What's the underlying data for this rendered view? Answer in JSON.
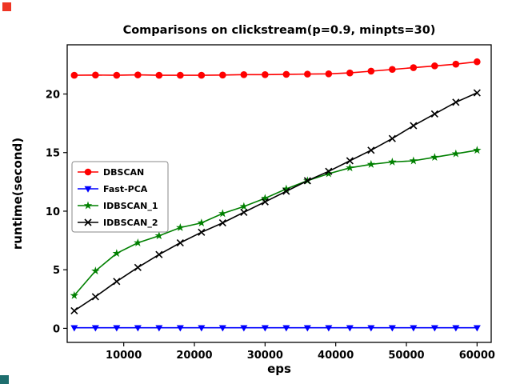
{
  "overlay_markers": {
    "top_left_color": "#ee3524",
    "bottom_left_color": "#1e6e6e"
  },
  "chart_data": {
    "type": "line",
    "title": "Comparisons on clickstream(p=0.9, minpts=30)",
    "xlabel": "eps",
    "ylabel": "runtime(second)",
    "xlim": [
      2000,
      62000
    ],
    "ylim": [
      -1.2,
      24.2
    ],
    "xticks": [
      10000,
      20000,
      30000,
      40000,
      50000,
      60000
    ],
    "yticks": [
      0,
      5,
      10,
      15,
      20
    ],
    "grid": false,
    "legend_position": "center-left",
    "x": [
      3000,
      6000,
      9000,
      12000,
      15000,
      18000,
      21000,
      24000,
      27000,
      30000,
      33000,
      36000,
      39000,
      42000,
      45000,
      48000,
      51000,
      54000,
      57000,
      60000
    ],
    "series": [
      {
        "name": "DBSCAN",
        "color": "#ff0000",
        "marker": "circle",
        "values": [
          21.6,
          21.62,
          21.6,
          21.63,
          21.6,
          21.6,
          21.6,
          21.62,
          21.65,
          21.65,
          21.68,
          21.7,
          21.72,
          21.8,
          21.95,
          22.1,
          22.25,
          22.4,
          22.55,
          22.75
        ]
      },
      {
        "name": "Fast-PCA",
        "color": "#0000ff",
        "marker": "triangle-down",
        "values": [
          0.05,
          0.05,
          0.05,
          0.05,
          0.05,
          0.05,
          0.05,
          0.05,
          0.05,
          0.05,
          0.05,
          0.05,
          0.05,
          0.05,
          0.05,
          0.05,
          0.05,
          0.05,
          0.05,
          0.05
        ]
      },
      {
        "name": "IDBSCAN_1",
        "color": "#008000",
        "marker": "star",
        "values": [
          2.8,
          4.9,
          6.4,
          7.3,
          7.9,
          8.6,
          9.0,
          9.8,
          10.4,
          11.1,
          11.9,
          12.6,
          13.2,
          13.7,
          14.0,
          14.2,
          14.3,
          14.6,
          14.9,
          15.2
        ]
      },
      {
        "name": "IDBSCAN_2",
        "color": "#000000",
        "marker": "x",
        "values": [
          1.5,
          2.7,
          4.0,
          5.2,
          6.3,
          7.3,
          8.2,
          9.0,
          9.9,
          10.8,
          11.7,
          12.6,
          13.4,
          14.3,
          15.2,
          16.2,
          17.3,
          18.3,
          19.3,
          20.1
        ]
      }
    ]
  }
}
